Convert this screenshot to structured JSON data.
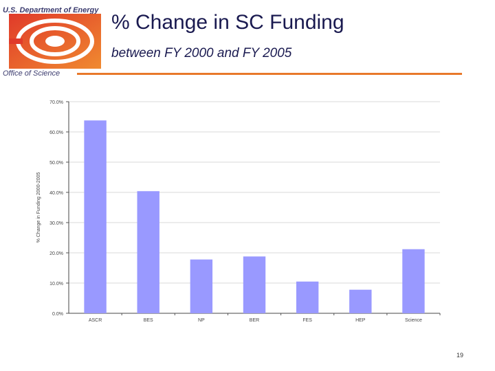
{
  "header": {
    "department": "U.S. Department of Energy",
    "office": "Office of Science",
    "title": "% Change in SC Funding",
    "subtitle": "between FY 2000 and FY 2005"
  },
  "colors": {
    "bar": "#9999ff",
    "rule": "#e8782a",
    "logo_orange": "#e8782a",
    "logo_red": "#e03a2a"
  },
  "page_number": "19",
  "chart_data": {
    "type": "bar",
    "categories": [
      "ASCR",
      "BES",
      "NP",
      "BER",
      "FES",
      "HEP",
      "Science"
    ],
    "values": [
      63.8,
      40.4,
      17.8,
      18.8,
      10.5,
      7.8,
      21.2
    ],
    "ylabel": "% Change in Funding 2000-2005",
    "ylim": [
      0,
      70
    ],
    "yticks": [
      "0.0%",
      "10.0%",
      "20.0%",
      "30.0%",
      "40.0%",
      "50.0%",
      "60.0%",
      "70.0%"
    ],
    "grid": true
  }
}
